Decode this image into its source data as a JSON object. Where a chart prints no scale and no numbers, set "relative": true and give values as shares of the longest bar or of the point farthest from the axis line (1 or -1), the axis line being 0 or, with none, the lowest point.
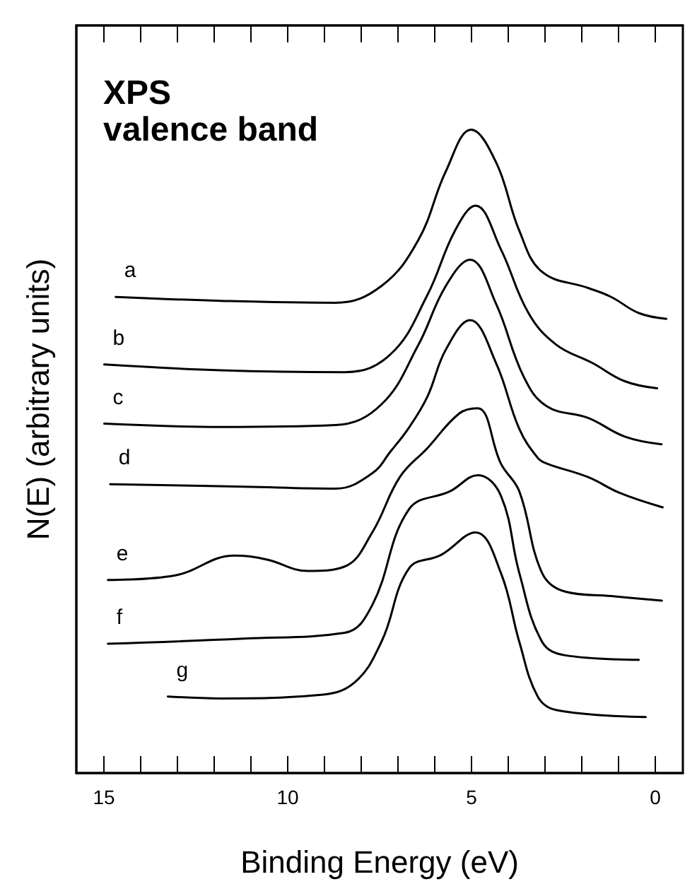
{
  "chart_data": {
    "type": "line",
    "title": "XPS\nvalence band",
    "xlabel": "Binding Energy (eV)",
    "ylabel": "N(E) (arbitrary units)",
    "relative": true,
    "xlim": [
      15.75,
      -0.75
    ],
    "xticks": [
      15,
      {
        "value": 14,
        "label": null
      },
      {
        "value": 13,
        "label": null
      },
      {
        "value": 12,
        "label": null
      },
      {
        "value": 11,
        "label": null
      },
      10,
      {
        "value": 9,
        "label": null
      },
      {
        "value": 8,
        "label": null
      },
      {
        "value": 7,
        "label": null
      },
      {
        "value": 6,
        "label": null
      },
      5,
      {
        "value": 4,
        "label": null
      },
      {
        "value": 3,
        "label": null
      },
      {
        "value": 2,
        "label": null
      },
      {
        "value": 1,
        "label": null
      },
      0
    ],
    "tick_labels": "x",
    "grid": false,
    "legend": false,
    "marker": "none",
    "line_style": "solid",
    "series": [
      {
        "name": "a",
        "color": "#000000",
        "x": [
          14.68,
          11.83,
          8.7,
          7.45,
          6.45,
          5.7,
          5.01,
          4.33,
          3.7,
          3.08,
          1.83,
          1.2,
          0.45,
          -0.3
        ],
        "values": [
          0.74,
          0.734,
          0.731,
          0.757,
          0.828,
          0.935,
          1.0,
          0.949,
          0.843,
          0.779,
          0.754,
          0.74,
          0.715,
          0.706
        ]
      },
      {
        "name": "b",
        "color": "#000000",
        "x": [
          14.99,
          11.83,
          8.45,
          7.2,
          6.2,
          5.45,
          4.89,
          4.2,
          3.45,
          2.7,
          1.7,
          0.83,
          -0.05
        ],
        "values": [
          0.635,
          0.626,
          0.623,
          0.651,
          0.743,
          0.843,
          0.882,
          0.814,
          0.715,
          0.666,
          0.637,
          0.609,
          0.598
        ]
      },
      {
        "name": "c",
        "color": "#000000",
        "x": [
          14.99,
          11.83,
          8.7,
          7.45,
          6.45,
          5.7,
          5.04,
          4.33,
          3.58,
          2.95,
          1.83,
          0.83,
          -0.17
        ],
        "values": [
          0.543,
          0.538,
          0.541,
          0.573,
          0.665,
          0.757,
          0.798,
          0.729,
          0.616,
          0.57,
          0.552,
          0.523,
          0.511
        ]
      },
      {
        "name": "d",
        "color": "#000000",
        "x": [
          14.83,
          11.2,
          8.7,
          7.7,
          7.2,
          6.7,
          6.2,
          5.7,
          5.04,
          4.33,
          3.7,
          3.2,
          2.95,
          1.83,
          0.95,
          -0.2
        ],
        "values": [
          0.449,
          0.445,
          0.442,
          0.466,
          0.5,
          0.537,
          0.585,
          0.658,
          0.704,
          0.637,
          0.535,
          0.49,
          0.481,
          0.46,
          0.435,
          0.413
        ]
      },
      {
        "name": "e",
        "color": "#000000",
        "x": [
          14.89,
          13.08,
          11.45,
          10.58,
          9.45,
          8.45,
          7.7,
          6.95,
          6.2,
          5.33,
          4.83,
          4.2,
          3.7,
          3.08,
          2.45,
          1.2,
          -0.18
        ],
        "values": [
          0.3,
          0.307,
          0.338,
          0.332,
          0.314,
          0.321,
          0.374,
          0.46,
          0.505,
          0.559,
          0.567,
          0.481,
          0.438,
          0.311,
          0.282,
          0.275,
          0.268
        ]
      },
      {
        "name": "f",
        "color": "#000000",
        "x": [
          14.89,
          11.2,
          8.45,
          7.7,
          6.7,
          5.58,
          4.83,
          4.2,
          3.7,
          3.08,
          2.45,
          0.45
        ],
        "values": [
          0.201,
          0.209,
          0.218,
          0.261,
          0.41,
          0.438,
          0.463,
          0.431,
          0.311,
          0.204,
          0.183,
          0.176
        ]
      },
      {
        "name": "g",
        "color": "#000000",
        "x": [
          13.26,
          11.83,
          9.2,
          8.2,
          7.45,
          6.7,
          5.83,
          4.89,
          4.2,
          3.7,
          3.2,
          2.7,
          0.26
        ],
        "values": [
          0.119,
          0.116,
          0.121,
          0.14,
          0.204,
          0.318,
          0.339,
          0.374,
          0.311,
          0.204,
          0.119,
          0.098,
          0.087
        ]
      }
    ]
  }
}
